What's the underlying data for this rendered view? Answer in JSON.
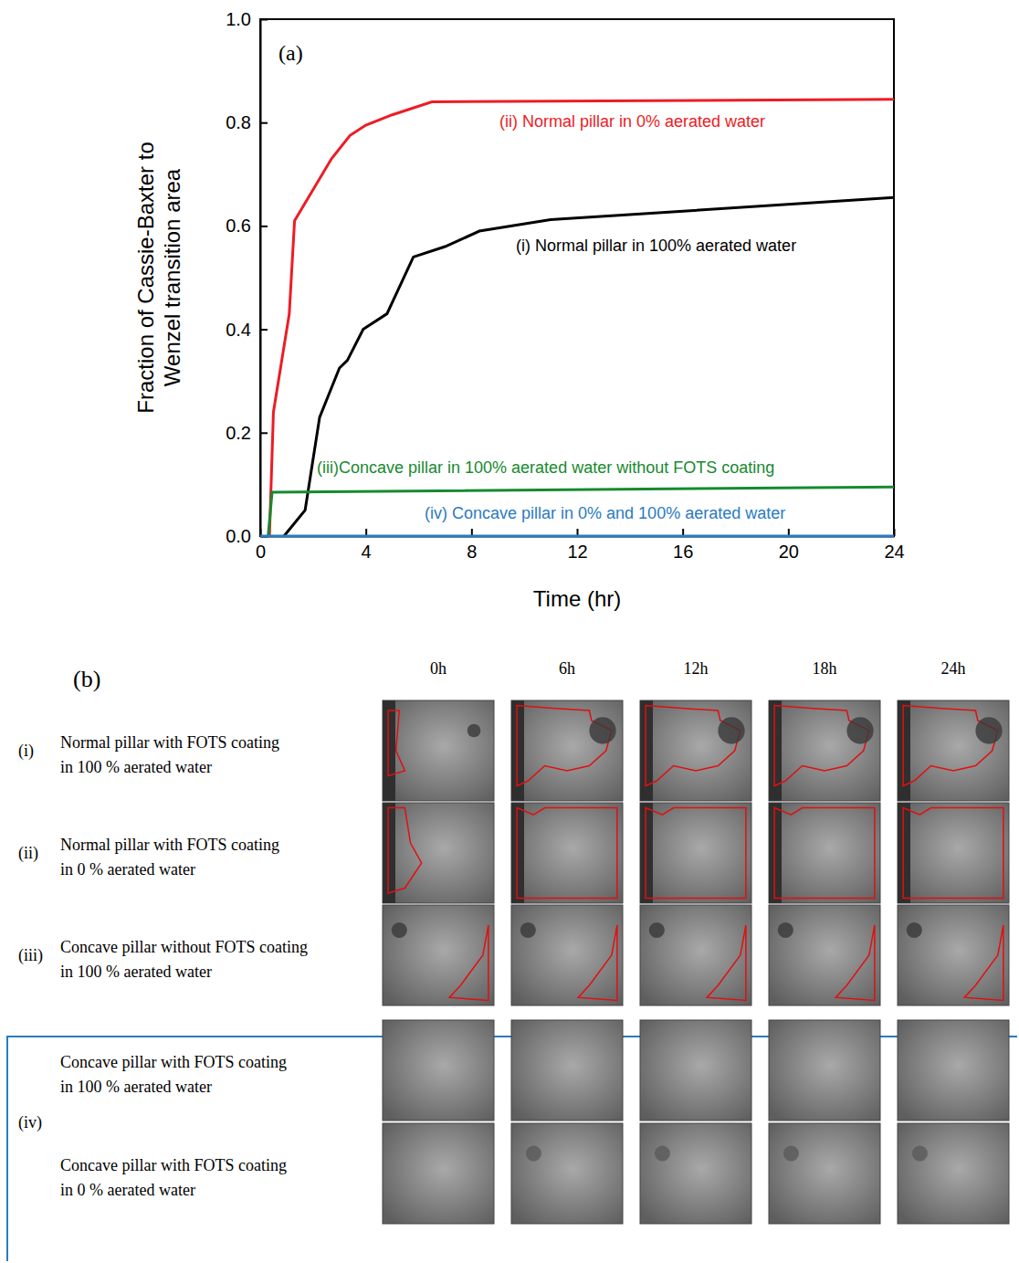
{
  "chart_data": {
    "type": "line",
    "title": "(a)",
    "x_label": "Time (hr)",
    "y_label": "Fraction of Cassie-Baxter to Wenzel transition area",
    "xlim": [
      0,
      24
    ],
    "xticks": [
      0,
      4,
      8,
      12,
      16,
      20,
      24
    ],
    "ylim": [
      0,
      1
    ],
    "yticks": [
      {
        "value": 0,
        "label": "0.0"
      },
      0.2,
      0.4,
      0.6,
      0.8,
      {
        "value": 1,
        "label": "1.0"
      }
    ],
    "series": [
      {
        "name": "(i) Normal pillar in 100% aerated water",
        "color": "#000000",
        "x": [
          0.9,
          1.7,
          2.25,
          3.0,
          3.3,
          3.9,
          4.8,
          5.8,
          7.0,
          8.3,
          11.0,
          24.0
        ],
        "values": [
          0,
          0.05,
          0.23,
          0.325,
          0.34,
          0.4,
          0.43,
          0.54,
          0.56,
          0.59,
          0.612,
          0.655
        ]
      },
      {
        "name": "(ii) Normal pillar in 0% aerated water",
        "color": "#ed1c24",
        "x": [
          0.35,
          0.5,
          1.1,
          1.3,
          2.0,
          2.7,
          3.4,
          4.0,
          5.0,
          6.5,
          24.0
        ],
        "values": [
          0,
          0.24,
          0.43,
          0.61,
          0.67,
          0.73,
          0.775,
          0.795,
          0.815,
          0.84,
          0.845
        ]
      },
      {
        "name": "(iii)Concave pillar in 100% aerated water without FOTS coating",
        "color": "#178a2f",
        "x": [
          0.3,
          0.45,
          24.0
        ],
        "values": [
          0,
          0.085,
          0.095
        ]
      },
      {
        "name": "(iv) Concave pillar in 0% and 100% aerated water",
        "color": "#2a7bc1",
        "x": [
          0,
          24.0
        ],
        "values": [
          0,
          0
        ]
      }
    ]
  },
  "panel_b": {
    "label": "(b)",
    "columns": [
      "0h",
      "6h",
      "12h",
      "18h",
      "24h"
    ],
    "rows": [
      {
        "number": "(i)",
        "labels": [
          [
            "Normal pillar with FOTS coating",
            "in 100 % aerated water"
          ]
        ]
      },
      {
        "number": "(ii)",
        "labels": [
          [
            "Normal pillar with FOTS coating",
            "in 0 % aerated water"
          ]
        ]
      },
      {
        "number": "(iii)",
        "labels": [
          [
            "Concave pillar without FOTS coating",
            "in 100 % aerated water"
          ]
        ]
      },
      {
        "number": "(iv)",
        "labels": [
          [
            "Concave pillar with FOTS coating",
            "in 100 % aerated water"
          ],
          [
            "Concave pillar with FOTS coating",
            "in 0 % aerated water"
          ]
        ]
      }
    ]
  }
}
